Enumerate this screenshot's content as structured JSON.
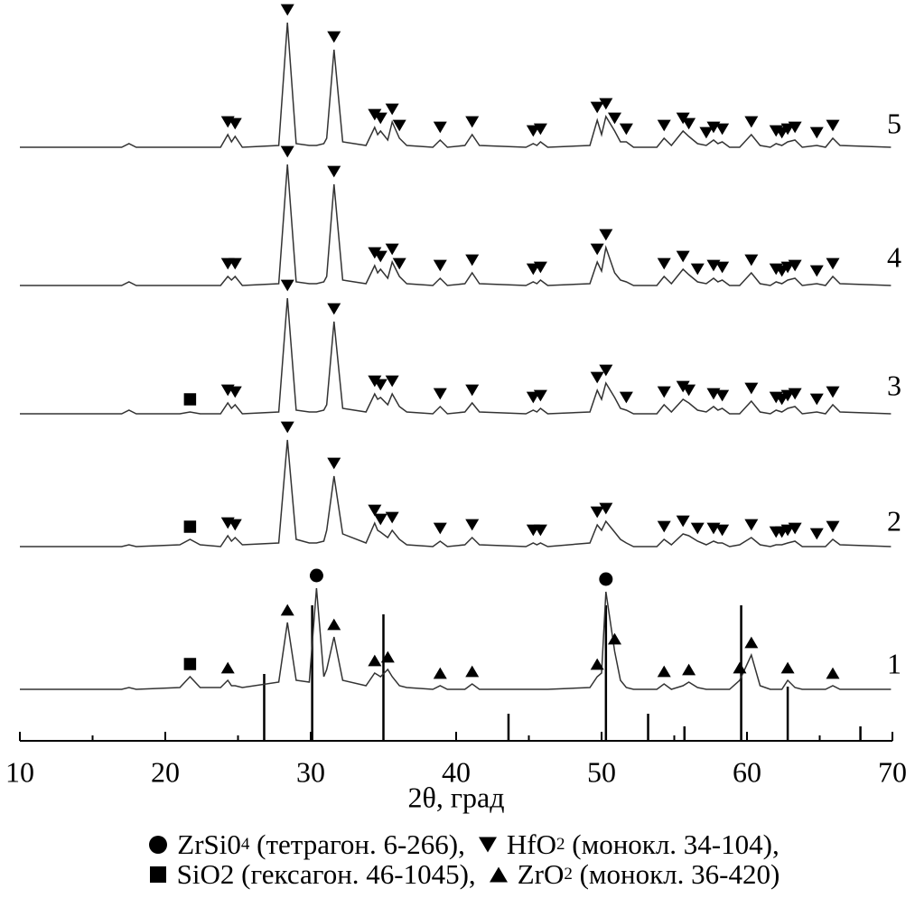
{
  "chart_data": {
    "type": "line",
    "x_label": "2θ, град",
    "xlim": [
      10,
      70
    ],
    "xticks": [
      10,
      20,
      30,
      40,
      50,
      60,
      70
    ],
    "xminorticks": [
      15,
      25,
      35,
      45,
      55,
      65
    ],
    "color": "#333333",
    "x": [
      10,
      17,
      17.5,
      18,
      21,
      21.7,
      22.4,
      23.8,
      24.3,
      24.55,
      24.8,
      25.3,
      27.8,
      28.4,
      29,
      29.9,
      30.4,
      30.9,
      31.1,
      31.6,
      32.2,
      33.8,
      34.4,
      34.6,
      34.8,
      35.3,
      35.6,
      36.1,
      36.6,
      38.4,
      38.9,
      39.4,
      40.6,
      41.1,
      41.6,
      44.8,
      45.3,
      45.55,
      45.8,
      46.3,
      49.2,
      49.7,
      50,
      50.3,
      50.9,
      51.3,
      51.7,
      52.2,
      53.8,
      54.3,
      54.8,
      55.6,
      56,
      56.6,
      57.2,
      57.7,
      58,
      58.3,
      58.8,
      59.5,
      60.3,
      60.9,
      61.6,
      62,
      62.4,
      62.8,
      63.3,
      63.8,
      64.8,
      65.4,
      65.9,
      66.4,
      69.9
    ],
    "series": [
      {
        "name": "1",
        "values": [
          1,
          1,
          2,
          1,
          2,
          8,
          2,
          2,
          6,
          3,
          3,
          2,
          5,
          38,
          6,
          5,
          57,
          8,
          12,
          30,
          6,
          3,
          10,
          9,
          8,
          12,
          8,
          3,
          2,
          1,
          3,
          1,
          1,
          4,
          1,
          1,
          1,
          1,
          1,
          1,
          2,
          8,
          10,
          55,
          22,
          6,
          2,
          1,
          1,
          4,
          1,
          3,
          5,
          2,
          1,
          1,
          1,
          1,
          1,
          6,
          20,
          3,
          1,
          1,
          1,
          6,
          2,
          1,
          1,
          1,
          3,
          1,
          1
        ],
        "markers": {
          "square": [
            21.7
          ],
          "up": [
            24.3,
            28.4,
            31.6,
            34.4,
            35.3,
            38.9,
            41.1,
            49.7,
            50.9,
            54.3,
            56,
            59.5,
            60.3,
            62.8,
            65.9
          ],
          "circle": [
            30.4,
            50.3
          ]
        }
      },
      {
        "name": "2",
        "values": [
          1,
          1,
          2,
          1,
          2,
          5,
          2,
          1,
          7,
          4,
          6,
          2,
          3,
          60,
          5,
          3,
          3,
          4,
          10,
          40,
          8,
          3,
          14,
          10,
          9,
          6,
          10,
          5,
          2,
          1,
          4,
          1,
          2,
          6,
          2,
          1,
          3,
          2,
          3,
          1,
          3,
          13,
          10,
          15,
          9,
          5,
          3,
          1,
          1,
          5,
          2,
          8,
          7,
          4,
          2,
          4,
          3,
          3,
          1,
          2,
          6,
          2,
          1,
          2,
          2,
          3,
          4,
          1,
          1,
          1,
          5,
          2,
          1
        ],
        "markers": {
          "square": [
            21.7
          ],
          "down": [
            24.3,
            24.8,
            28.4,
            31.6,
            34.4,
            34.8,
            35.6,
            38.9,
            41.1,
            45.3,
            45.8,
            49.7,
            50.3,
            54.3,
            55.6,
            56.6,
            57.7,
            58.3,
            60.3,
            62,
            62.4,
            62.8,
            63.3,
            64.8,
            65.9
          ]
        }
      },
      {
        "name": "3",
        "values": [
          1,
          1,
          3,
          1,
          1,
          2,
          1,
          1,
          7,
          4,
          6,
          1,
          2,
          65,
          3,
          2,
          2,
          3,
          6,
          52,
          4,
          2,
          12,
          9,
          10,
          6,
          12,
          5,
          2,
          1,
          5,
          1,
          2,
          7,
          2,
          1,
          3,
          2,
          4,
          1,
          2,
          14,
          9,
          18,
          10,
          4,
          3,
          1,
          1,
          6,
          2,
          9,
          7,
          3,
          2,
          5,
          3,
          4,
          1,
          1,
          8,
          2,
          1,
          3,
          2,
          4,
          5,
          1,
          2,
          1,
          6,
          2,
          1
        ],
        "markers": {
          "square": [
            21.7
          ],
          "down": [
            24.3,
            24.8,
            28.4,
            31.6,
            34.4,
            34.8,
            35.6,
            38.9,
            41.1,
            45.3,
            45.8,
            49.7,
            50.3,
            51.7,
            54.3,
            55.6,
            56,
            57.7,
            58.3,
            60.3,
            62,
            62.4,
            62.8,
            63.3,
            64.8,
            65.9
          ]
        }
      },
      {
        "name": "4",
        "values": [
          1,
          1,
          3,
          1,
          1,
          1,
          1,
          1,
          6,
          4,
          6,
          1,
          2,
          68,
          3,
          2,
          2,
          3,
          6,
          57,
          4,
          2,
          12,
          8,
          10,
          5,
          14,
          6,
          2,
          1,
          5,
          1,
          2,
          8,
          2,
          1,
          3,
          2,
          4,
          1,
          2,
          14,
          9,
          22,
          8,
          4,
          3,
          1,
          1,
          6,
          2,
          10,
          7,
          3,
          2,
          5,
          3,
          4,
          1,
          1,
          8,
          2,
          1,
          3,
          2,
          4,
          5,
          1,
          2,
          1,
          6,
          2,
          1
        ],
        "markers": {
          "down": [
            24.3,
            24.8,
            28.4,
            31.6,
            34.4,
            34.8,
            35.6,
            36.1,
            38.9,
            41.1,
            45.3,
            45.8,
            49.7,
            50.3,
            54.3,
            55.6,
            56.6,
            57.7,
            58.3,
            60.3,
            62,
            62.4,
            62.8,
            63.3,
            64.8,
            65.9
          ]
        }
      },
      {
        "name": "5",
        "values": [
          1,
          1,
          3,
          1,
          1,
          1,
          1,
          1,
          8,
          4,
          7,
          1,
          2,
          70,
          3,
          2,
          2,
          3,
          6,
          55,
          4,
          2,
          12,
          8,
          10,
          5,
          15,
          6,
          2,
          1,
          5,
          1,
          2,
          8,
          2,
          1,
          3,
          2,
          4,
          1,
          2,
          16,
          8,
          18,
          10,
          4,
          4,
          1,
          1,
          6,
          2,
          10,
          7,
          3,
          2,
          5,
          3,
          4,
          1,
          1,
          8,
          2,
          1,
          3,
          2,
          4,
          5,
          1,
          2,
          1,
          6,
          2,
          1
        ],
        "markers": {
          "down": [
            24.3,
            24.8,
            28.4,
            31.6,
            34.4,
            34.8,
            35.6,
            36.1,
            38.9,
            41.1,
            45.3,
            45.8,
            49.7,
            50.3,
            50.9,
            51.7,
            54.3,
            55.6,
            56,
            57.2,
            57.7,
            58.3,
            60.3,
            62,
            62.4,
            62.8,
            63.3,
            64.8,
            65.9
          ]
        }
      }
    ],
    "reference": {
      "x": [
        26.8,
        30.1,
        35.0,
        43.6,
        50.3,
        53.2,
        55.7,
        59.6,
        62.8,
        67.8
      ],
      "values": [
        37,
        75,
        70,
        15,
        75,
        15,
        8,
        75,
        30,
        8
      ],
      "color": "#000000"
    },
    "legend": [
      {
        "symbol": "circle",
        "formula": "ZrSi0",
        "sub": "4",
        "note": " (тетрагон. 6-266),"
      },
      {
        "symbol": "down",
        "formula": "HfO",
        "sub": "2",
        "note": " (монокл. 34-104),"
      },
      {
        "symbol": "square",
        "formula": "SiO2",
        "note": " (гексагон. 46-1045),"
      },
      {
        "symbol": "up",
        "formula": "ZrO",
        "sub": "2",
        "note": " (монокл. 36-420)"
      }
    ]
  }
}
